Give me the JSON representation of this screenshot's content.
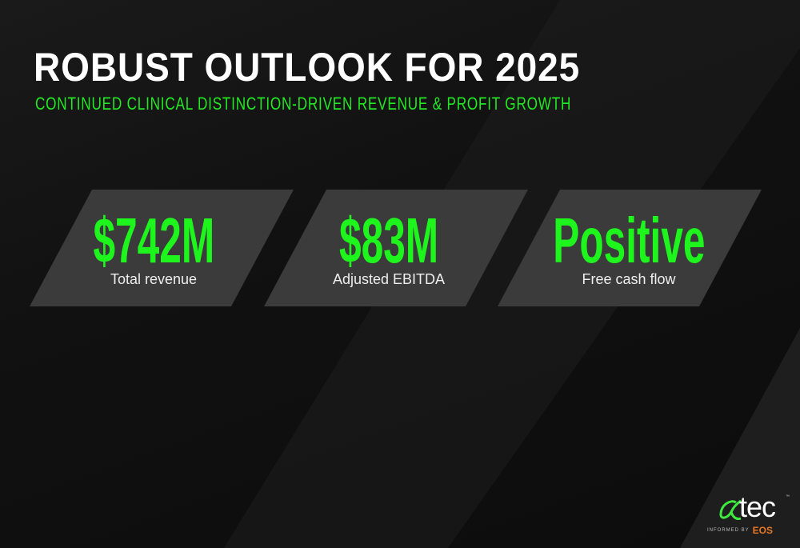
{
  "header": {
    "title": "ROBUST OUTLOOK FOR 2025",
    "subtitle": "CONTINUED CLINICAL DISTINCTION-DRIVEN REVENUE & PROFIT GROWTH"
  },
  "metrics": [
    {
      "value": "$742M",
      "label": "Total revenue"
    },
    {
      "value": "$83M",
      "label": "Adjusted EBITDA"
    },
    {
      "value": "Positive",
      "label": "Free cash flow"
    }
  ],
  "logo": {
    "brand": "atec",
    "tagline": "INFORMED BY",
    "partner": "EOS"
  },
  "colors": {
    "accent": "#1df51d",
    "card": "#3a3a3a",
    "background": "#111111",
    "partner": "#e87722"
  }
}
